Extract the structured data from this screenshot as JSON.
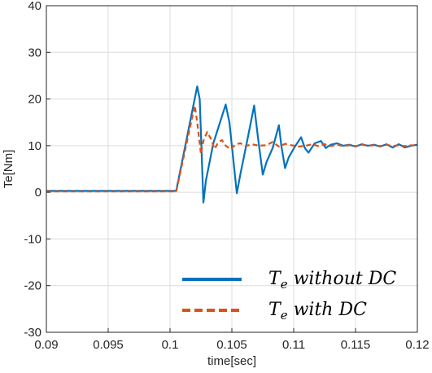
{
  "chart_data": {
    "type": "line",
    "title": "",
    "xlabel": "time[sec]",
    "ylabel": "Te[Nm]",
    "xlim": [
      0.09,
      0.12
    ],
    "ylim": [
      -30,
      40
    ],
    "xticks": [
      0.09,
      0.095,
      0.1,
      0.105,
      0.11,
      0.115,
      0.12
    ],
    "xtick_labels": [
      "0.09",
      "0.095",
      "0.1",
      "0.105",
      "0.11",
      "0.115",
      "0.12"
    ],
    "yticks": [
      -30,
      -20,
      -10,
      0,
      10,
      20,
      30,
      40
    ],
    "ytick_labels": [
      "-30",
      "-20",
      "-10",
      "0",
      "10",
      "20",
      "30",
      "40"
    ],
    "grid": true,
    "legend_position": "bottom-right",
    "series": [
      {
        "legend_main": "T",
        "legend_sub": "e",
        "legend_rest": " without DC",
        "color": "#0072BD",
        "dash": "solid",
        "points": [
          [
            0.09,
            0.3
          ],
          [
            0.1005,
            0.3
          ],
          [
            0.1022,
            22.7
          ],
          [
            0.1024,
            20
          ],
          [
            0.1027,
            -2.2
          ],
          [
            0.1029,
            2.5
          ],
          [
            0.1035,
            10.5
          ],
          [
            0.1045,
            18.8
          ],
          [
            0.1048,
            15
          ],
          [
            0.1054,
            -0.2
          ],
          [
            0.1057,
            4
          ],
          [
            0.1062,
            10.5
          ],
          [
            0.1068,
            18.6
          ],
          [
            0.1071,
            12
          ],
          [
            0.1075,
            3.8
          ],
          [
            0.1078,
            6.5
          ],
          [
            0.1083,
            9.5
          ],
          [
            0.1088,
            14.4
          ],
          [
            0.109,
            10
          ],
          [
            0.1093,
            5.2
          ],
          [
            0.1096,
            7.5
          ],
          [
            0.1101,
            9.8
          ],
          [
            0.1106,
            11.8
          ],
          [
            0.1109,
            9.5
          ],
          [
            0.1112,
            8.5
          ],
          [
            0.1117,
            10.5
          ],
          [
            0.1122,
            11
          ],
          [
            0.1126,
            9.5
          ],
          [
            0.113,
            10.2
          ],
          [
            0.1135,
            10.5
          ],
          [
            0.114,
            10
          ],
          [
            0.1145,
            10.2
          ],
          [
            0.115,
            9.8
          ],
          [
            0.1155,
            10.3
          ],
          [
            0.116,
            10
          ],
          [
            0.1165,
            10.2
          ],
          [
            0.117,
            9.8
          ],
          [
            0.1175,
            10.3
          ],
          [
            0.118,
            9.6
          ],
          [
            0.1185,
            10.3
          ],
          [
            0.119,
            9.6
          ],
          [
            0.1195,
            10
          ],
          [
            0.12,
            10.2
          ]
        ]
      },
      {
        "legend_main": "T",
        "legend_sub": "e",
        "legend_rest": " with DC",
        "color": "#D95319",
        "dash": "dashed",
        "points": [
          [
            0.09,
            0.2
          ],
          [
            0.1005,
            0.2
          ],
          [
            0.102,
            18.6
          ],
          [
            0.1022,
            15
          ],
          [
            0.1025,
            8.2
          ],
          [
            0.1027,
            11
          ],
          [
            0.103,
            12.9
          ],
          [
            0.1033,
            11.5
          ],
          [
            0.1036,
            9.3
          ],
          [
            0.1039,
            10.7
          ],
          [
            0.1042,
            11.2
          ],
          [
            0.1045,
            10
          ],
          [
            0.1049,
            9.2
          ],
          [
            0.1053,
            10.3
          ],
          [
            0.1057,
            10.5
          ],
          [
            0.1061,
            9.9
          ],
          [
            0.1066,
            10.3
          ],
          [
            0.1072,
            10
          ],
          [
            0.1078,
            10.1
          ],
          [
            0.1083,
            10.8
          ],
          [
            0.1088,
            9.8
          ],
          [
            0.1093,
            10.4
          ],
          [
            0.1098,
            10.1
          ],
          [
            0.1104,
            9.8
          ],
          [
            0.111,
            10
          ],
          [
            0.1115,
            10.3
          ],
          [
            0.112,
            9.9
          ],
          [
            0.1125,
            10.3
          ],
          [
            0.113,
            9.9
          ],
          [
            0.1135,
            10.2
          ],
          [
            0.114,
            9.9
          ],
          [
            0.1145,
            10.1
          ],
          [
            0.115,
            9.9
          ],
          [
            0.1155,
            10.2
          ],
          [
            0.116,
            10
          ],
          [
            0.1165,
            10.1
          ],
          [
            0.117,
            9.9
          ],
          [
            0.1175,
            10.2
          ],
          [
            0.118,
            9.9
          ],
          [
            0.1185,
            10.1
          ],
          [
            0.119,
            9.9
          ],
          [
            0.1195,
            10.1
          ],
          [
            0.12,
            10
          ]
        ]
      }
    ]
  }
}
